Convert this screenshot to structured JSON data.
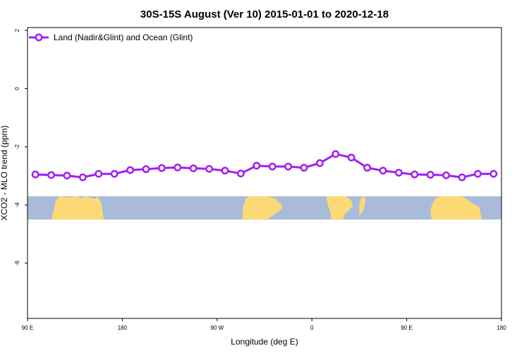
{
  "chart_data": {
    "type": "line",
    "title": "30S-15S August (Ver 10)   2015-01-01 to 2020-12-18",
    "xlabel": "Longitude (deg E)",
    "ylabel": "XCO2 - MLO trend (ppm)",
    "xlim": [
      90,
      450
    ],
    "ylim": [
      -7.9,
      2.1
    ],
    "x_ticks": [
      {
        "value": 90,
        "label": "90 E"
      },
      {
        "value": 162,
        "label": "180"
      },
      {
        "value": 234,
        "label": "90 W"
      },
      {
        "value": 306,
        "label": "0"
      },
      {
        "value": 378,
        "label": "90 E"
      },
      {
        "value": 450,
        "label": "180"
      }
    ],
    "y_ticks": [
      {
        "value": 2,
        "label": "2"
      },
      {
        "value": 0,
        "label": "0"
      },
      {
        "value": -2,
        "label": "-2"
      },
      {
        "value": -4,
        "label": "-4"
      },
      {
        "value": -6,
        "label": "-6"
      }
    ],
    "legend": {
      "position": "top-left"
    },
    "grid": false,
    "map_strip": {
      "ymin": -4.5,
      "ymax": -3.7,
      "ocean_color": "#a8bcd9",
      "land_color": "#fcd975"
    },
    "series": [
      {
        "name": "Land (Nadir&Glint) and Ocean (Glint)",
        "color": "#a020f0",
        "x": [
          96,
          108,
          120,
          132,
          144,
          156,
          168,
          180,
          192,
          204,
          216,
          228,
          240,
          252,
          264,
          276,
          288,
          300,
          312,
          324,
          336,
          348,
          360,
          372,
          384,
          396,
          408,
          420,
          432,
          444
        ],
        "y": [
          -2.95,
          -2.97,
          -2.99,
          -3.05,
          -2.93,
          -2.93,
          -2.8,
          -2.77,
          -2.73,
          -2.71,
          -2.74,
          -2.76,
          -2.82,
          -2.92,
          -2.65,
          -2.68,
          -2.68,
          -2.72,
          -2.56,
          -2.25,
          -2.37,
          -2.72,
          -2.82,
          -2.89,
          -2.95,
          -2.96,
          -2.98,
          -3.05,
          -2.93,
          -2.93
        ]
      }
    ]
  }
}
